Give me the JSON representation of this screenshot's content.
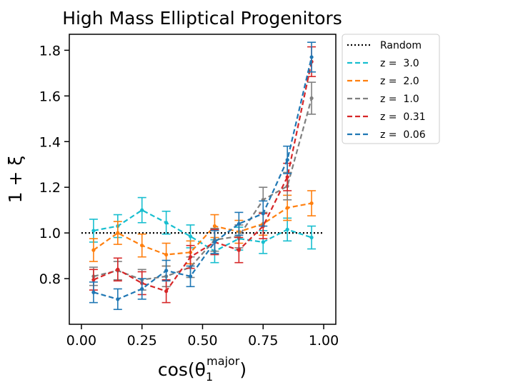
{
  "chart_data": {
    "type": "line",
    "title": "High Mass Elliptical Progenitors",
    "xlabel_base": "cos(θ",
    "xlabel_sub": "1",
    "xlabel_sup": "major",
    "xlabel_close": ")",
    "ylabel": "1 + ξ",
    "xlim": [
      -0.05,
      1.05
    ],
    "ylim": [
      0.6,
      1.87
    ],
    "xticks": [
      0.0,
      0.25,
      0.5,
      0.75,
      1.0
    ],
    "xtick_labels": [
      "0.00",
      "0.25",
      "0.50",
      "0.75",
      "1.00"
    ],
    "yticks": [
      0.8,
      1.0,
      1.2,
      1.4,
      1.6,
      1.8
    ],
    "ytick_labels": [
      "0.8",
      "1.0",
      "1.2",
      "1.4",
      "1.6",
      "1.8"
    ],
    "grid": false,
    "legend_position": "outside-right",
    "reference": {
      "name": "Random",
      "value": 1.0,
      "color": "#000000",
      "style": "dotted"
    },
    "x": [
      0.05,
      0.15,
      0.25,
      0.35,
      0.45,
      0.55,
      0.65,
      0.75,
      0.85,
      0.95
    ],
    "series": [
      {
        "name": "z =  3.0",
        "color": "#17becf",
        "values": [
          1.01,
          1.03,
          1.1,
          1.045,
          0.985,
          0.92,
          0.975,
          0.96,
          1.015,
          0.98
        ],
        "errors": [
          0.05,
          0.05,
          0.055,
          0.05,
          0.05,
          0.05,
          0.05,
          0.05,
          0.05,
          0.05
        ]
      },
      {
        "name": "z =  2.0",
        "color": "#ff7f0e",
        "values": [
          0.925,
          1.0,
          0.945,
          0.905,
          0.915,
          1.03,
          1.005,
          1.04,
          1.11,
          1.13
        ],
        "errors": [
          0.05,
          0.05,
          0.05,
          0.05,
          0.05,
          0.05,
          0.05,
          0.05,
          0.055,
          0.055
        ]
      },
      {
        "name": "z =  1.0",
        "color": "#7f7f7f",
        "values": [
          0.81,
          0.835,
          0.795,
          0.81,
          0.85,
          0.97,
          0.985,
          1.145,
          1.205,
          1.59
        ],
        "errors": [
          0.04,
          0.04,
          0.045,
          0.045,
          0.045,
          0.05,
          0.05,
          0.055,
          0.06,
          0.07
        ]
      },
      {
        "name": "z =  0.31",
        "color": "#d62728",
        "values": [
          0.795,
          0.84,
          0.78,
          0.745,
          0.895,
          0.96,
          0.925,
          1.03,
          1.245,
          1.75
        ],
        "errors": [
          0.045,
          0.05,
          0.05,
          0.05,
          0.05,
          0.055,
          0.055,
          0.055,
          0.06,
          0.065
        ]
      },
      {
        "name": "z =  0.06",
        "color": "#1f77b4",
        "values": [
          0.74,
          0.71,
          0.755,
          0.835,
          0.81,
          0.96,
          1.04,
          1.085,
          1.32,
          1.77
        ],
        "errors": [
          0.045,
          0.045,
          0.045,
          0.045,
          0.045,
          0.05,
          0.05,
          0.055,
          0.06,
          0.065
        ]
      }
    ]
  }
}
